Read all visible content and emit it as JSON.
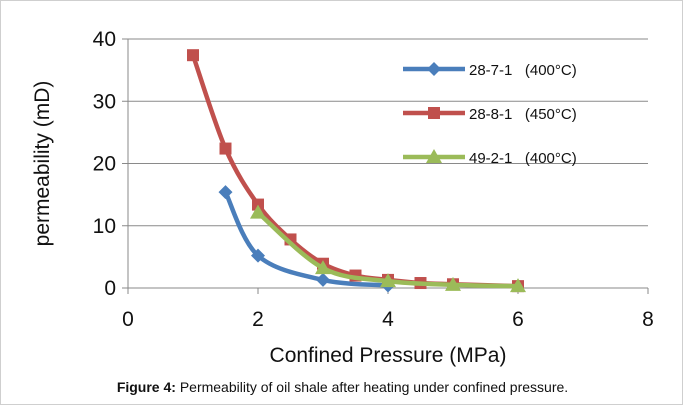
{
  "caption": {
    "label": "Figure 4:",
    "text": " Permeability of oil shale after heating under confined pressure."
  },
  "chart_data": {
    "type": "line",
    "xlabel": "Confined Pressure (MPa)",
    "ylabel": "permeability (mD)",
    "xlim": [
      0,
      8
    ],
    "ylim": [
      0,
      40
    ],
    "xticks": [
      0,
      2,
      4,
      6,
      8
    ],
    "yticks": [
      0,
      10,
      20,
      30,
      40
    ],
    "grid": "horizontal",
    "legend_position": "top-right",
    "series": [
      {
        "name": "28-7-1   (400°C)",
        "color": "#4a7ebb",
        "marker": "diamond",
        "x": [
          1.5,
          2,
          3,
          4
        ],
        "y": [
          15.4,
          5.2,
          1.3,
          0.4
        ]
      },
      {
        "name": "28-8-1   (450°C)",
        "color": "#c0504d",
        "marker": "square",
        "x": [
          1,
          1.5,
          2,
          2.5,
          3,
          3.5,
          4,
          4.5,
          5,
          6
        ],
        "y": [
          37.4,
          22.4,
          13.4,
          7.8,
          3.9,
          2.0,
          1.3,
          0.8,
          0.6,
          0.3
        ]
      },
      {
        "name": "49-2-1   (400°C)",
        "color": "#9bbb59",
        "marker": "triangle",
        "x": [
          2,
          3,
          4,
          5,
          6
        ],
        "y": [
          12.1,
          3.2,
          1.1,
          0.5,
          0.3
        ]
      }
    ]
  }
}
